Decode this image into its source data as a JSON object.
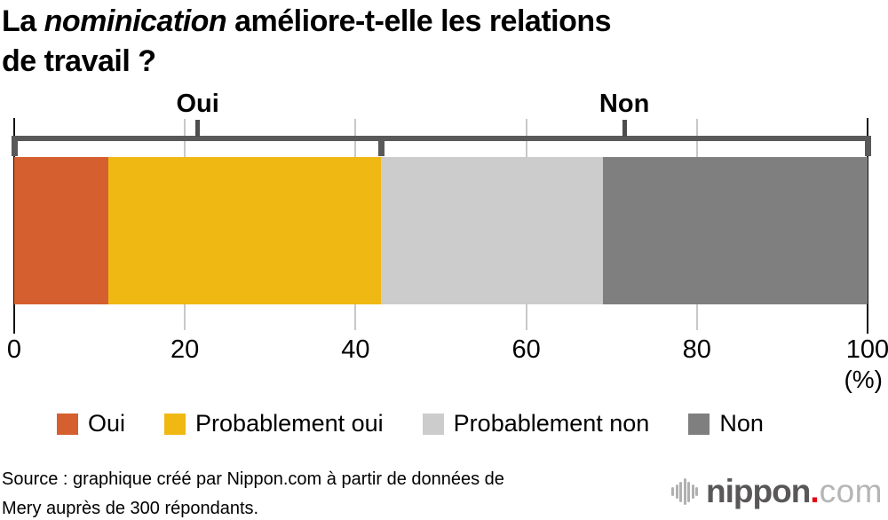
{
  "title": {
    "prefix": "La ",
    "italic": "nominication",
    "suffix": " améliore-t-elle les relations",
    "line2": "de travail ?"
  },
  "chart_data": {
    "type": "bar",
    "orientation": "horizontal",
    "stacked": true,
    "title": "La nominication améliore-t-elle les relations de travail ?",
    "categories": [
      "Oui",
      "Probablement oui",
      "Probablement non",
      "Non"
    ],
    "values": [
      11,
      32,
      26,
      31
    ],
    "colors": [
      "#d55f2e",
      "#f0b813",
      "#cccccc",
      "#7f7f7f"
    ],
    "groups": [
      {
        "label": "Oui",
        "from": 0,
        "to": 43
      },
      {
        "label": "Non",
        "from": 43,
        "to": 100
      }
    ],
    "x_ticks": [
      0,
      20,
      40,
      60,
      80,
      100
    ],
    "xlim": [
      0,
      100
    ],
    "x_unit": "(%)",
    "grid": true,
    "legend_position": "bottom"
  },
  "legend": {
    "items": [
      {
        "label": "Oui",
        "color": "#d55f2e"
      },
      {
        "label": "Probablement oui",
        "color": "#f0b813"
      },
      {
        "label": "Probablement non",
        "color": "#cccccc"
      },
      {
        "label": "Non",
        "color": "#7f7f7f"
      }
    ]
  },
  "source": {
    "line1": "Source : graphique créé par Nippon.com à partir de données de",
    "line2": "Mery auprès de 300 répondants."
  },
  "logo": {
    "brand": "nippon",
    "dot": ".",
    "tld": "com",
    "brand_color": "#595757",
    "tld_color": "#b5b5b5",
    "dot_color": "#e60012"
  }
}
